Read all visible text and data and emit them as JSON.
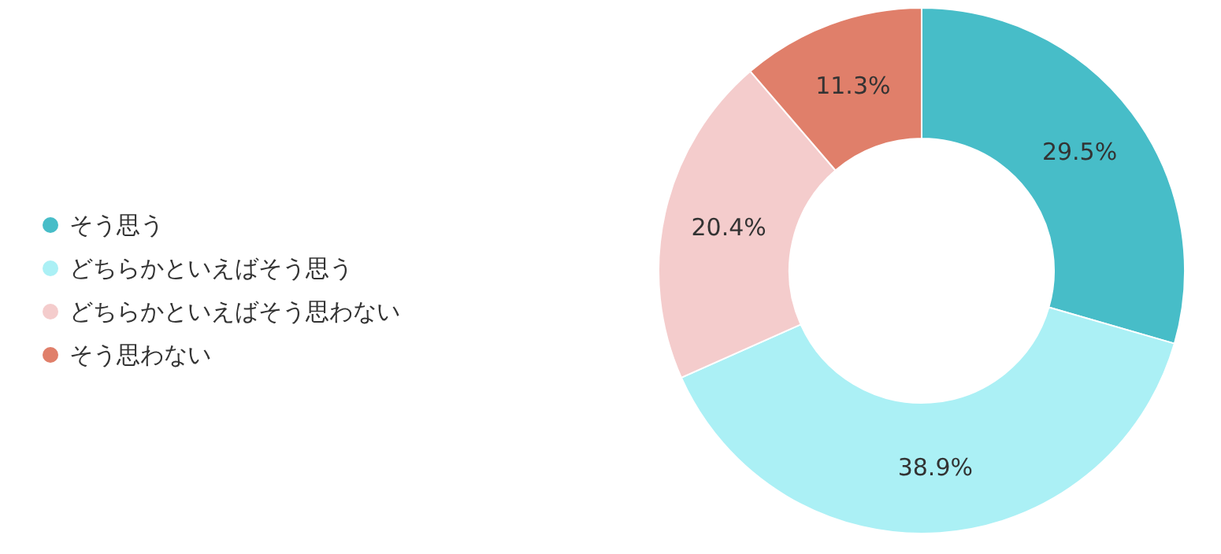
{
  "chart_data": {
    "type": "donut",
    "categories": [
      "そう思う",
      "どちらかといえばそう思う",
      "どちらかといえばそう思わない",
      "そう思わない"
    ],
    "values": [
      29.5,
      38.9,
      20.4,
      11.3
    ],
    "value_labels": [
      "29.5%",
      "38.9%",
      "20.4%",
      "11.3%"
    ],
    "colors": [
      "#47bdc8",
      "#abf0f5",
      "#f4cccc",
      "#e07f6a"
    ],
    "legend": "left"
  }
}
